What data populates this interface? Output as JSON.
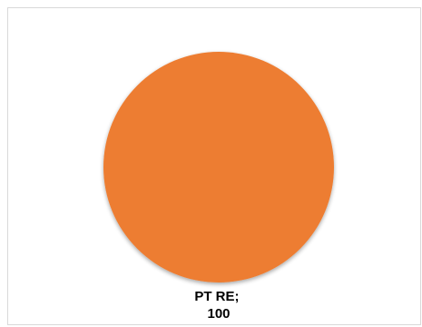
{
  "chart_data": {
    "type": "pie",
    "categories": [
      "PT RE"
    ],
    "values": [
      100
    ],
    "data_labels": [
      {
        "line1": "PT RE;",
        "line2": "100"
      }
    ],
    "title": "",
    "legend": "none",
    "colors": {
      "slice": "#ED7D31",
      "border": "#D9D9D9"
    }
  }
}
